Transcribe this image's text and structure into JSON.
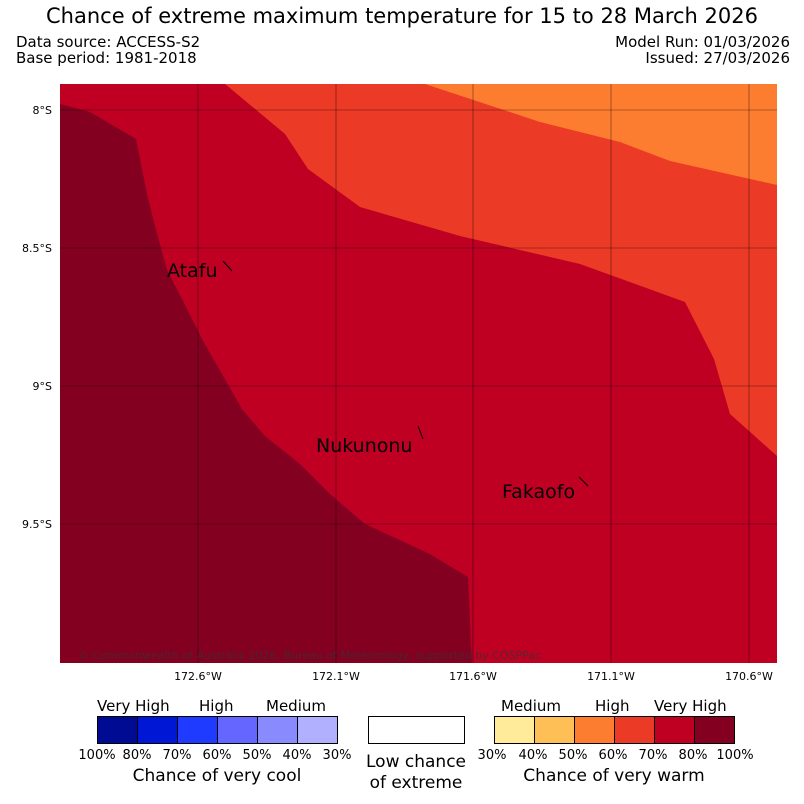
{
  "title": "Chance of extreme maximum temperature for 15 to 28 March 2026",
  "meta": {
    "data_source": "Data source: ACCESS-S2",
    "base_period": "Base period: 1981-2018",
    "model_run": "Model Run: 01/03/2026",
    "issued": "Issued: 27/03/2026"
  },
  "map": {
    "copyright": "© Commonwealth of Australia 2026, Bureau of Meteorology, supported by COSPPac",
    "places": {
      "atafu": "Atafu",
      "nukunonu": "Nukunonu",
      "fakaofo": "Fakaofo"
    },
    "lat_labels": [
      "8°S",
      "8.5°S",
      "9°S",
      "9.5°S"
    ],
    "lon_labels": [
      "172.6°W",
      "172.1°W",
      "171.6°W",
      "171.1°W",
      "170.6°W"
    ],
    "colors": {
      "very_high_warm": "#840021",
      "high_warm_70_80": "#bf0023",
      "high_warm_60_70": "#eb3a26",
      "medium_high_warm": "#fd7d30"
    }
  },
  "legend": {
    "cool": {
      "labels": {
        "very_high": "Very High",
        "high": "High",
        "medium": "Medium"
      },
      "colors": [
        "#000b94",
        "#0018d6",
        "#1f3bff",
        "#6565ff",
        "#8a8aff",
        "#b0b0ff"
      ],
      "ticks": [
        "100%",
        "80%",
        "70%",
        "60%",
        "50%",
        "40%",
        "30%"
      ],
      "caption": "Chance of very cool"
    },
    "low": {
      "color": "#ffffff",
      "caption_line1": "Low chance",
      "caption_line2": "of extreme"
    },
    "warm": {
      "labels": {
        "medium": "Medium",
        "high": "High",
        "very_high": "Very High"
      },
      "colors": [
        "#ffeb99",
        "#ffbf57",
        "#fd7d30",
        "#eb3a26",
        "#bf0023",
        "#840021"
      ],
      "ticks": [
        "30%",
        "40%",
        "50%",
        "60%",
        "70%",
        "80%",
        "100%"
      ],
      "caption": "Chance of very warm"
    }
  }
}
